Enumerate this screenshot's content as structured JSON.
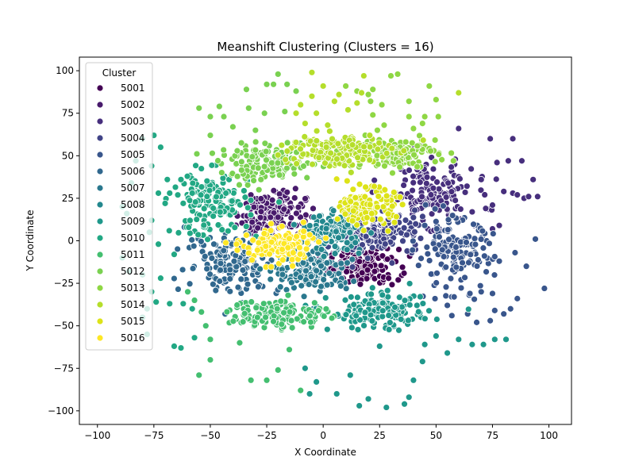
{
  "chart_data": {
    "type": "scatter",
    "title": "Meanshift Clustering (Clusters = 16)",
    "xlabel": "X Coordinate",
    "ylabel": "Y Coordinate",
    "xlim": [
      -108,
      110
    ],
    "ylim": [
      -108,
      108
    ],
    "xticks": [
      -100,
      -75,
      -50,
      -25,
      0,
      25,
      50,
      75,
      100
    ],
    "yticks": [
      -100,
      -75,
      -50,
      -25,
      0,
      25,
      50,
      75,
      100
    ],
    "grid": false,
    "legend": {
      "title": "Cluster",
      "placement": "top-left",
      "entries": [
        "5001",
        "5002",
        "5003",
        "5004",
        "5005",
        "5006",
        "5007",
        "5008",
        "5009",
        "5010",
        "5011",
        "5012",
        "5013",
        "5014",
        "5015",
        "5016"
      ]
    },
    "series": [
      {
        "name": "5001",
        "color": "#440154",
        "center": [
          18,
          -15
        ],
        "spread": [
          9,
          6
        ],
        "sparse": []
      },
      {
        "name": "5002",
        "color": "#481a6c",
        "center": [
          -23,
          17
        ],
        "spread": [
          9,
          8
        ],
        "sparse": []
      },
      {
        "name": "5003",
        "color": "#472f7d",
        "center": [
          47,
          28
        ],
        "spread": [
          12,
          10
        ],
        "sparse": [
          [
            60,
            66
          ],
          [
            74,
            60
          ],
          [
            84,
            60
          ],
          [
            88,
            47
          ],
          [
            82,
            47
          ],
          [
            77,
            46
          ],
          [
            70,
            36
          ],
          [
            80,
            29
          ],
          [
            84,
            28
          ],
          [
            86,
            27
          ],
          [
            89,
            25
          ],
          [
            91,
            26
          ],
          [
            95,
            26
          ],
          [
            93,
            36
          ],
          [
            75,
            21
          ],
          [
            72,
            19
          ],
          [
            66,
            17
          ],
          [
            67,
            9
          ],
          [
            75,
            7
          ],
          [
            78,
            9
          ],
          [
            44,
            56
          ],
          [
            48,
            49
          ],
          [
            40,
            55
          ]
        ]
      },
      {
        "name": "5004",
        "color": "#414487",
        "center": [
          25,
          5
        ],
        "spread": [
          12,
          8
        ],
        "sparse": []
      },
      {
        "name": "5005",
        "color": "#39568c",
        "center": [
          58,
          -8
        ],
        "spread": [
          10,
          12
        ],
        "sparse": [
          [
            85,
            -7
          ],
          [
            90,
            -15
          ],
          [
            94,
            1
          ],
          [
            98,
            -28
          ],
          [
            78,
            -12
          ],
          [
            75,
            -31
          ],
          [
            70,
            -30
          ],
          [
            65,
            -31
          ],
          [
            58,
            -33
          ],
          [
            55,
            -38
          ],
          [
            57,
            -44
          ],
          [
            64,
            -43
          ],
          [
            68,
            -48
          ],
          [
            74,
            -47
          ],
          [
            80,
            -43
          ],
          [
            83,
            -40
          ],
          [
            86,
            -34
          ],
          [
            76,
            -41
          ]
        ]
      },
      {
        "name": "5006",
        "color": "#31688e",
        "center": [
          -40,
          -12
        ],
        "spread": [
          12,
          11
        ],
        "sparse": []
      },
      {
        "name": "5007",
        "color": "#2a788e",
        "center": [
          -5,
          -17
        ],
        "spread": [
          10,
          8
        ],
        "sparse": []
      },
      {
        "name": "5008",
        "color": "#23888e",
        "center": [
          5,
          5
        ],
        "spread": [
          7,
          6
        ],
        "sparse": []
      },
      {
        "name": "5009",
        "color": "#1f988b",
        "center": [
          25,
          -42
        ],
        "spread": [
          13,
          6
        ],
        "sparse": [
          [
            25,
            -62
          ],
          [
            12,
            -79
          ],
          [
            6,
            -90
          ],
          [
            20,
            -93
          ],
          [
            28,
            -98
          ],
          [
            16,
            -97
          ],
          [
            36,
            -96
          ],
          [
            38,
            -92
          ],
          [
            40,
            -82
          ],
          [
            44,
            -71
          ],
          [
            55,
            -66
          ],
          [
            60,
            -58
          ],
          [
            66,
            -61
          ],
          [
            71,
            -61
          ],
          [
            76,
            -58
          ],
          [
            81,
            -58
          ],
          [
            50,
            -56
          ],
          [
            45,
            -61
          ],
          [
            -3,
            -83
          ],
          [
            -6,
            -90
          ],
          [
            -15,
            -64
          ],
          [
            -8,
            -75
          ]
        ]
      },
      {
        "name": "5010",
        "color": "#22a884",
        "center": [
          -50,
          22
        ],
        "spread": [
          10,
          11
        ],
        "sparse": [
          [
            -75,
            62
          ],
          [
            -72,
            55
          ],
          [
            -76,
            44
          ],
          [
            -73,
            28
          ],
          [
            -68,
            28
          ],
          [
            -63,
            36
          ],
          [
            -58,
            28
          ],
          [
            -62,
            22
          ],
          [
            -70,
            22
          ],
          [
            -76,
            12
          ],
          [
            -77,
            5
          ],
          [
            -73,
            -2
          ],
          [
            -66,
            -8
          ],
          [
            -72,
            -22
          ],
          [
            -76,
            -30
          ],
          [
            -74,
            -36
          ],
          [
            -68,
            -37
          ],
          [
            -62,
            -37
          ],
          [
            -58,
            -40
          ],
          [
            -66,
            -62
          ],
          [
            -63,
            -63
          ],
          [
            -57,
            -57
          ],
          [
            -78,
            -55
          ],
          [
            -80,
            -45
          ],
          [
            -78,
            -40
          ],
          [
            -80,
            -20
          ],
          [
            -86,
            -18
          ],
          [
            -89,
            -10
          ],
          [
            -87,
            16
          ],
          [
            -89,
            20
          ],
          [
            -85,
            34
          ],
          [
            -83,
            47
          ],
          [
            -80,
            60
          ]
        ]
      },
      {
        "name": "5011",
        "color": "#44bf70",
        "center": [
          -20,
          -43
        ],
        "spread": [
          13,
          5
        ],
        "sparse": [
          [
            -60,
            -30
          ],
          [
            -57,
            -35
          ],
          [
            -52,
            -50
          ],
          [
            -50,
            -58
          ],
          [
            -55,
            -79
          ],
          [
            -50,
            -70
          ],
          [
            -37,
            -60
          ],
          [
            -32,
            -82
          ],
          [
            -25,
            -82
          ],
          [
            -20,
            -76
          ],
          [
            -10,
            -88
          ],
          [
            -15,
            -64
          ]
        ]
      },
      {
        "name": "5012",
        "color": "#7ad151",
        "center": [
          -25,
          45
        ],
        "spread": [
          12,
          6
        ],
        "sparse": [
          [
            -55,
            78
          ],
          [
            -50,
            73
          ],
          [
            -46,
            79
          ],
          [
            -44,
            73
          ],
          [
            -40,
            67
          ],
          [
            -30,
            65
          ],
          [
            -33,
            78
          ],
          [
            -34,
            89
          ],
          [
            -25,
            92
          ],
          [
            -22,
            92
          ],
          [
            -20,
            98
          ],
          [
            -16,
            92
          ],
          [
            -12,
            88
          ],
          [
            -17,
            76
          ],
          [
            -26,
            75
          ],
          [
            -50,
            62
          ]
        ]
      },
      {
        "name": "5013",
        "color": "#8fd744",
        "center": [
          30,
          52
        ],
        "spread": [
          12,
          5
        ],
        "sparse": [
          [
            45,
            73
          ],
          [
            40,
            66
          ],
          [
            44,
            69
          ],
          [
            51,
            73
          ],
          [
            50,
            83
          ],
          [
            47,
            91
          ],
          [
            38,
            82
          ],
          [
            38,
            73
          ],
          [
            27,
            68
          ],
          [
            24,
            65
          ],
          [
            22,
            74
          ],
          [
            26,
            80
          ],
          [
            30,
            97
          ],
          [
            33,
            98
          ],
          [
            22,
            89
          ],
          [
            21,
            82
          ],
          [
            20,
            86
          ],
          [
            15,
            88
          ],
          [
            10,
            91
          ]
        ]
      },
      {
        "name": "5014",
        "color": "#b5de2b",
        "center": [
          5,
          53
        ],
        "spread": [
          14,
          6
        ],
        "sparse": [
          [
            -5,
            99
          ],
          [
            0,
            91
          ],
          [
            -5,
            85
          ],
          [
            -10,
            80
          ],
          [
            -12,
            75
          ],
          [
            -3,
            75
          ],
          [
            5,
            82
          ],
          [
            7,
            86
          ],
          [
            11,
            77
          ],
          [
            15,
            81
          ],
          [
            17,
            87
          ],
          [
            18,
            97
          ],
          [
            2,
            68
          ],
          [
            -8,
            69
          ],
          [
            60,
            87
          ]
        ]
      },
      {
        "name": "5015",
        "color": "#dde318",
        "center": [
          20,
          20
        ],
        "spread": [
          7,
          6
        ],
        "sparse": []
      },
      {
        "name": "5016",
        "color": "#fde725",
        "center": [
          -20,
          -3
        ],
        "spread": [
          9,
          6
        ],
        "sparse": []
      }
    ]
  }
}
